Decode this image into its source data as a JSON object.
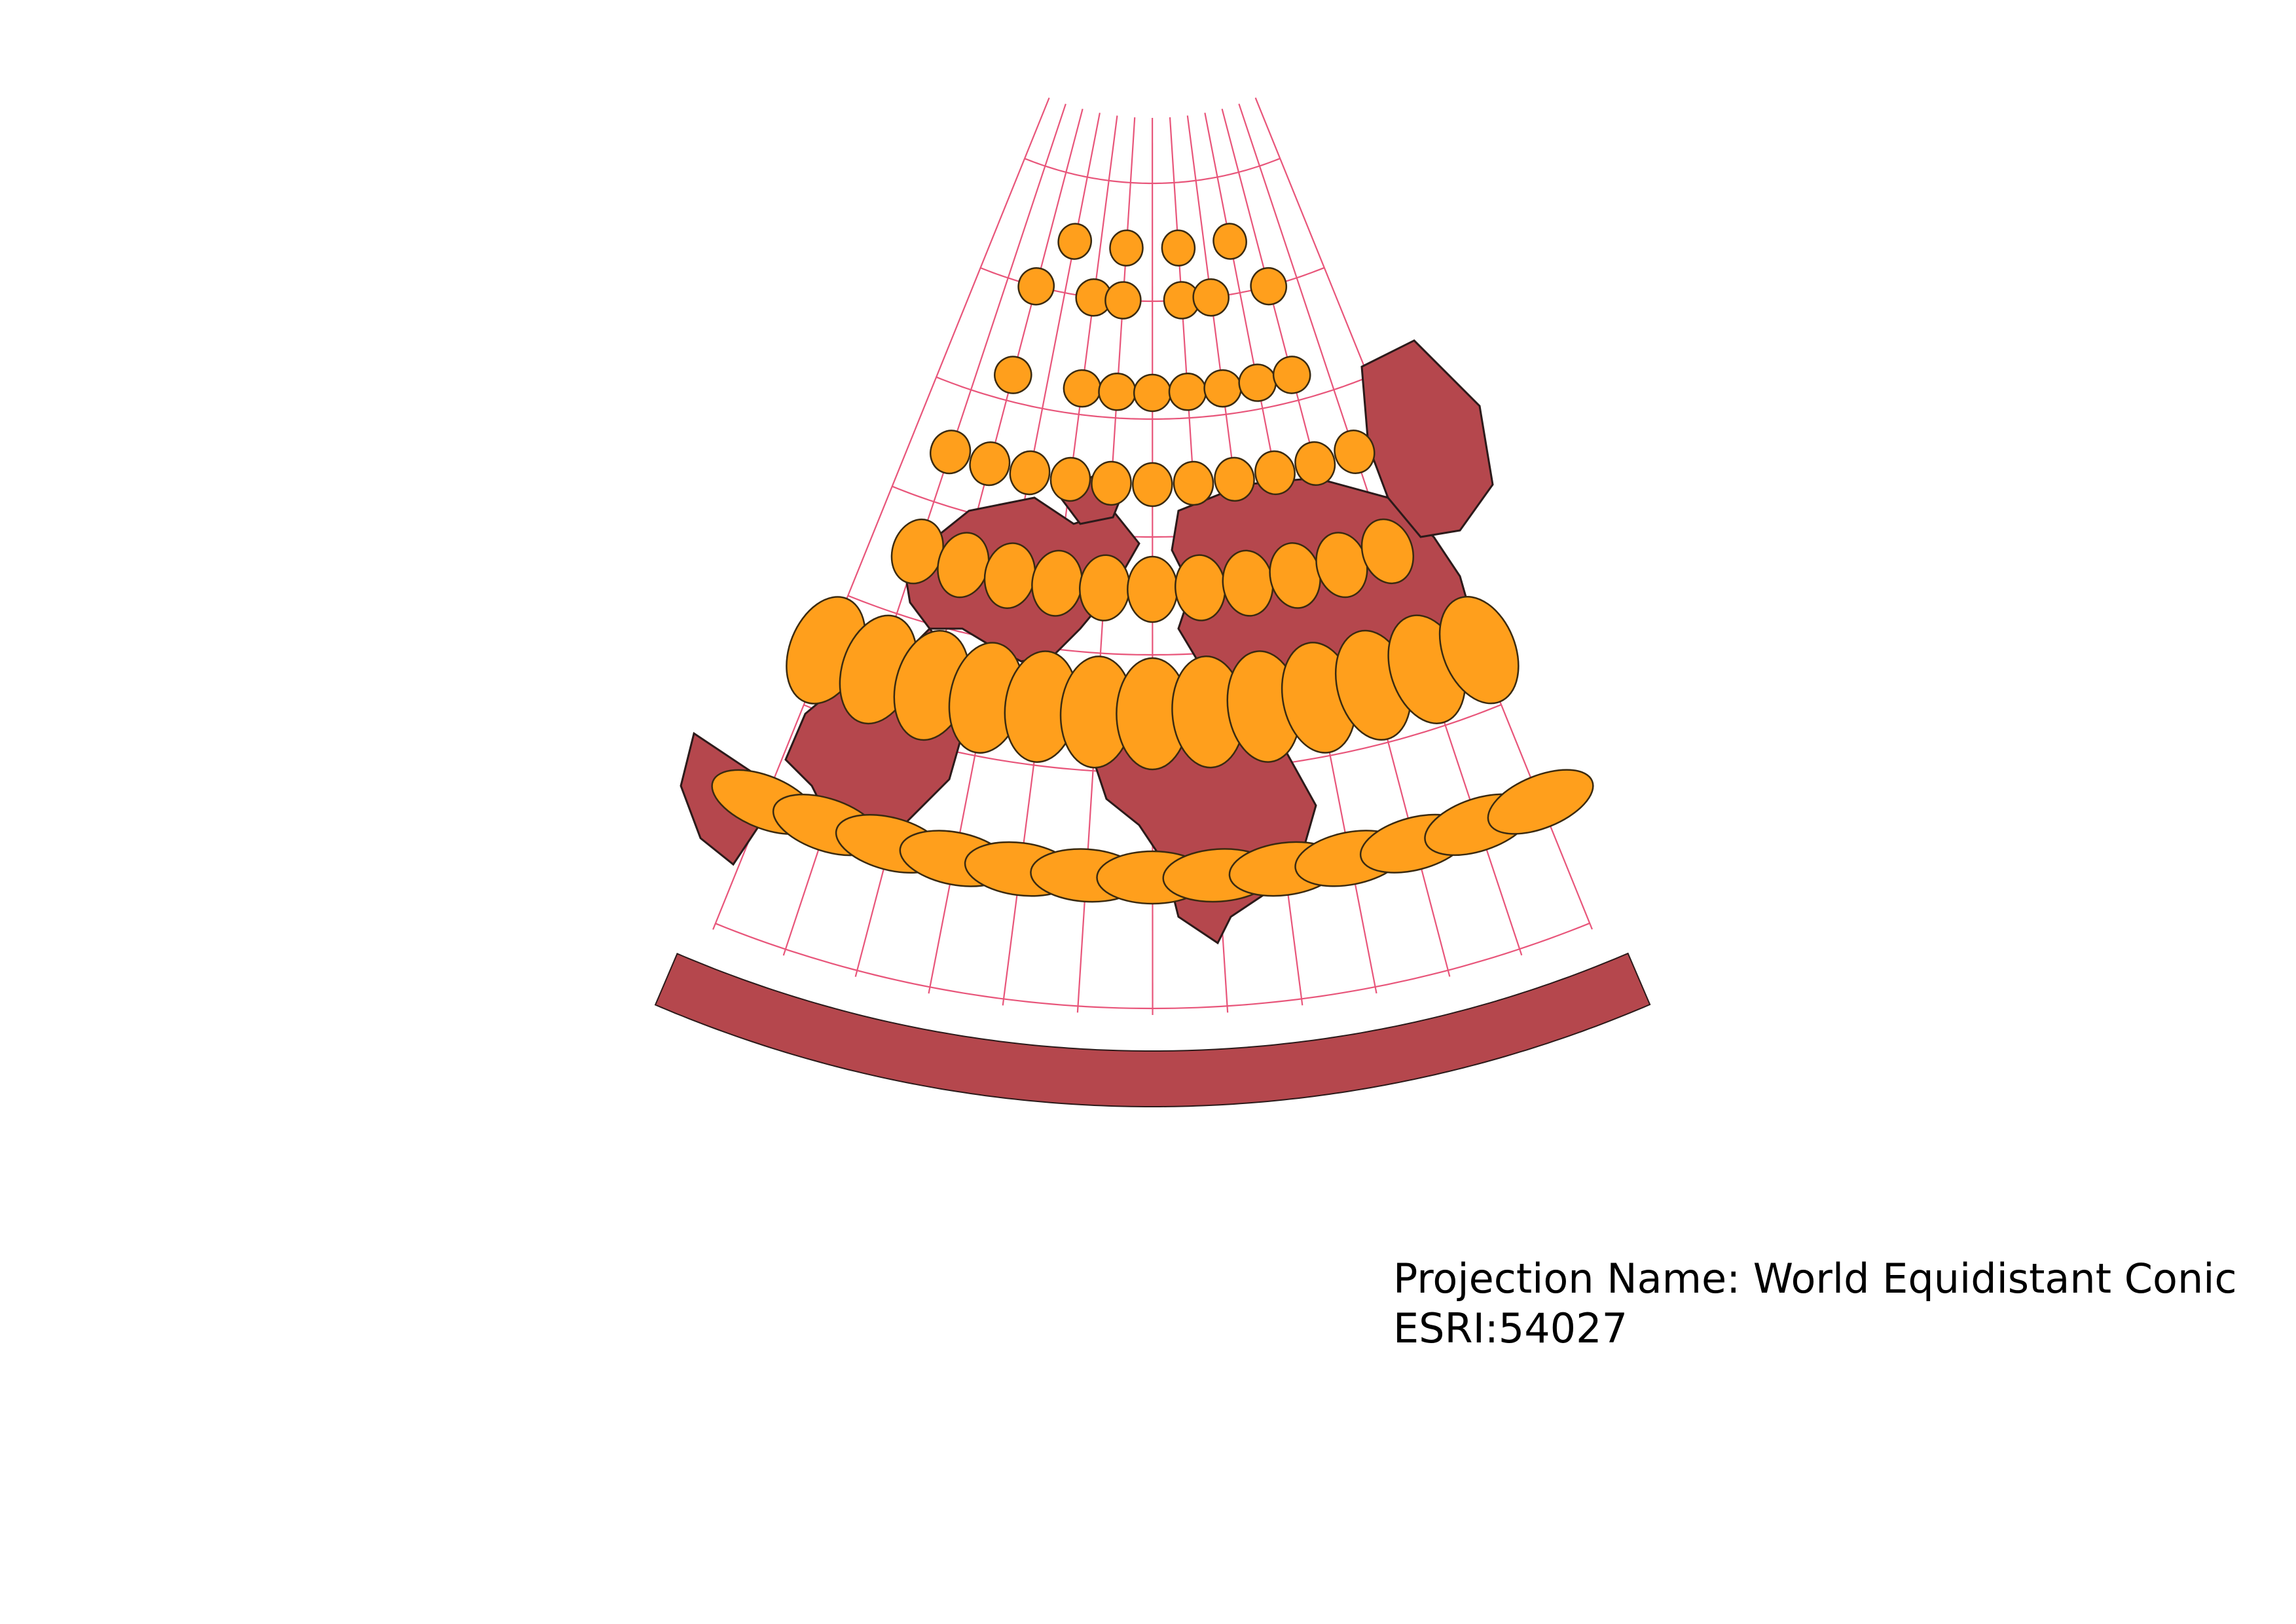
{
  "map": {
    "projection_name": "Projection Name: World Equidistant Conic",
    "crs_code": "ESRI:54027",
    "colors": {
      "land": "#b5474d",
      "land_outline": "#2b1a1a",
      "tissot_fill": "#ff9f1c",
      "tissot_outline": "#3a2a10",
      "graticule": "#e8557a",
      "background": "#ffffff"
    },
    "layers": [
      "countries",
      "tissot-indicatrix",
      "graticule"
    ]
  }
}
